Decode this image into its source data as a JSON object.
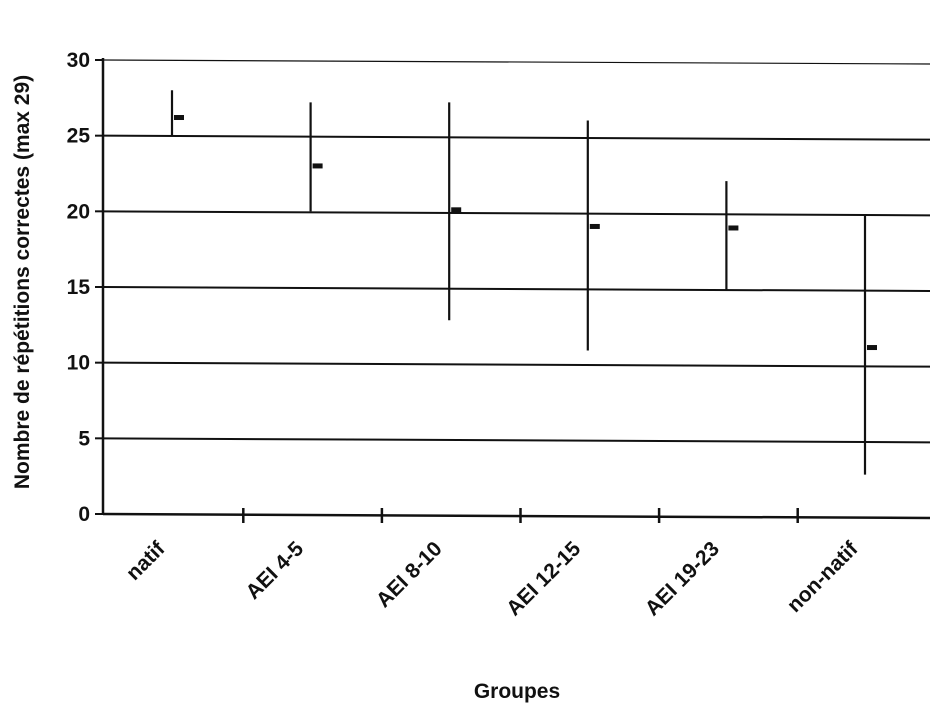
{
  "chart_data": {
    "type": "range",
    "title": "",
    "xlabel": "Groupes",
    "ylabel": "Nombre de répétitions correctes (max 29)",
    "ylim": [
      0,
      30
    ],
    "yticks": [
      0,
      5,
      10,
      15,
      20,
      25,
      30
    ],
    "grid": true,
    "legend": "none",
    "categories": [
      "natif",
      "AEI 4-5",
      "AEI 8-10",
      "AEI 12-15",
      "AEI 19-23",
      "non-natif"
    ],
    "series": [
      {
        "min": [
          25,
          20,
          12.8,
          10.8,
          14.8,
          2.6
        ]
      },
      {
        "max": [
          28,
          27.2,
          27.2,
          26,
          22,
          19.8
        ]
      },
      {
        "mean": [
          26.2,
          23,
          20.1,
          19,
          18.9,
          11
        ]
      }
    ],
    "colors": {
      "lines": "#111111",
      "background": "#ffffff"
    }
  }
}
